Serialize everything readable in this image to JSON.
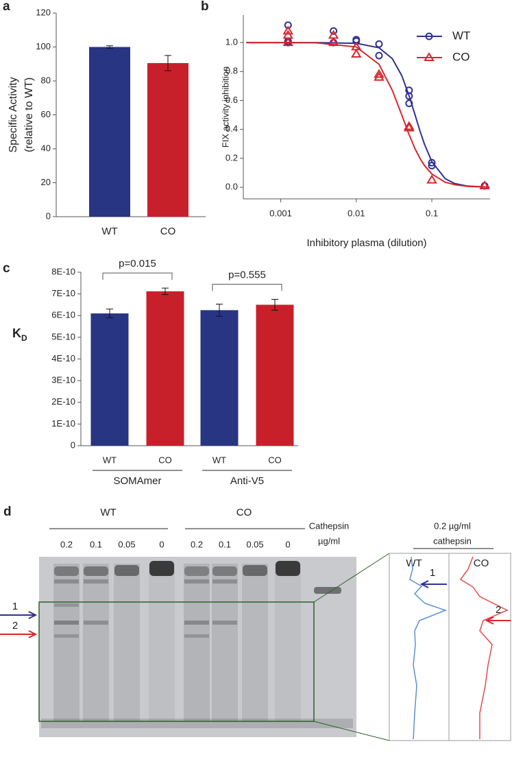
{
  "chart_data": [
    {
      "label": "a",
      "type": "bar",
      "y_label": [
        "Specific Activity",
        "(relative to WT)"
      ],
      "categories": [
        "WT",
        "CO"
      ],
      "values": [
        100,
        90.5
      ],
      "errors": [
        0.7,
        4.5
      ],
      "colors": [
        "#283583",
        "#c8202a"
      ],
      "ylim": [
        0,
        120
      ],
      "yticks": [
        0,
        20,
        40,
        60,
        80,
        100,
        120
      ]
    },
    {
      "label": "b",
      "type": "scatter",
      "x_label": "Inhibitory plasma (dilution)",
      "y_label": "FIX activity inhibition",
      "x_scale": "log",
      "xlim": [
        0.00032,
        0.59
      ],
      "xticks": [
        0.001,
        0.01,
        0.1
      ],
      "ylim": [
        -0.08,
        1.19
      ],
      "yticks": [
        {
          "value": 0,
          "label": "0.0"
        },
        {
          "value": 0.2,
          "label": "0.2"
        },
        {
          "value": 0.4,
          "label": "0.4"
        },
        {
          "value": 0.6,
          "label": "0.6"
        },
        {
          "value": 0.8,
          "label": "0.8"
        },
        {
          "value": 1,
          "label": "1.0"
        }
      ],
      "legend": "upper right",
      "fit_x": [
        0.00035,
        0.001,
        0.003,
        0.01,
        0.02,
        0.03,
        0.04,
        0.05,
        0.06,
        0.07,
        0.08,
        0.1,
        0.15,
        0.2,
        0.3,
        0.58
      ],
      "series": [
        {
          "name": "WT",
          "color": "#2e3192",
          "marker": "circle",
          "x": [
            0.00125,
            0.00125,
            0.00125,
            0.005,
            0.005,
            0.01,
            0.01,
            0.02,
            0.02,
            0.05,
            0.05,
            0.05,
            0.1,
            0.1,
            0.5
          ],
          "values": [
            1.12,
            1.0,
            1.01,
            1.08,
            1.0,
            1.02,
            1.01,
            0.99,
            0.91,
            0.67,
            0.63,
            0.58,
            0.17,
            0.15,
            0.01
          ],
          "fit_values": [
            1,
            1,
            1,
            0.995,
            0.964,
            0.889,
            0.772,
            0.633,
            0.5,
            0.386,
            0.297,
            0.178,
            0.06,
            0.026,
            0.008,
            0.001
          ]
        },
        {
          "name": "CO",
          "color": "#d7262d",
          "marker": "triangle",
          "x": [
            0.00125,
            0.00125,
            0.00125,
            0.005,
            0.005,
            0.01,
            0.01,
            0.02,
            0.02,
            0.05,
            0.05,
            0.1,
            0.5
          ],
          "values": [
            1.08,
            1.05,
            1.0,
            1.05,
            1.0,
            0.97,
            0.92,
            0.78,
            0.76,
            0.42,
            0.41,
            0.05,
            0.01
          ],
          "fit_values": [
            1,
            1,
            0.998,
            0.97,
            0.85,
            0.67,
            0.5,
            0.364,
            0.266,
            0.198,
            0.15,
            0.092,
            0.035,
            0.018,
            0.006,
            0.001
          ]
        }
      ]
    },
    {
      "label": "c",
      "type": "bar",
      "y_label": "K",
      "y_label_sub": "D",
      "categories": [
        "WT",
        "CO",
        "WT",
        "CO"
      ],
      "groups": [
        "SOMAmer",
        "Anti-V5"
      ],
      "values": [
        6.1e-10,
        7.12e-10,
        6.25e-10,
        6.5e-10
      ],
      "errors": [
        2e-11,
        1.5e-11,
        2.8e-11,
        2.5e-11
      ],
      "colors": [
        "#283583",
        "#c8202a",
        "#283583",
        "#c8202a"
      ],
      "annotations": [
        "p=0.015",
        "p=0.555"
      ],
      "ylim": [
        0,
        8e-10
      ],
      "yticks": [
        0,
        {
          "value": 1e-10,
          "label": "1E-10"
        },
        {
          "value": 2e-10,
          "label": "2E-10"
        },
        {
          "value": 3e-10,
          "label": "3E-10"
        },
        {
          "value": 4e-10,
          "label": "4E-10"
        },
        {
          "value": 5e-10,
          "label": "5E-10"
        },
        {
          "value": 6e-10,
          "label": "6E-10"
        },
        {
          "value": 7e-10,
          "label": "7E-10"
        },
        {
          "value": 8e-10,
          "label": "8E-10"
        }
      ]
    }
  ],
  "gel": {
    "label": "d",
    "groups": [
      "WT",
      "CO"
    ],
    "lanes": [
      "0.2",
      "0.1",
      "0.05",
      "0",
      "0.2",
      "0.1",
      "0.05",
      "0"
    ],
    "unit": [
      "Cathepsin",
      "µg/ml"
    ],
    "arrows": [
      "1",
      "2"
    ],
    "inset": {
      "title": [
        "0.2 µg/ml",
        "cathepsin"
      ],
      "columns": [
        "WT",
        "CO"
      ],
      "arrows": [
        "1",
        "2"
      ]
    }
  }
}
